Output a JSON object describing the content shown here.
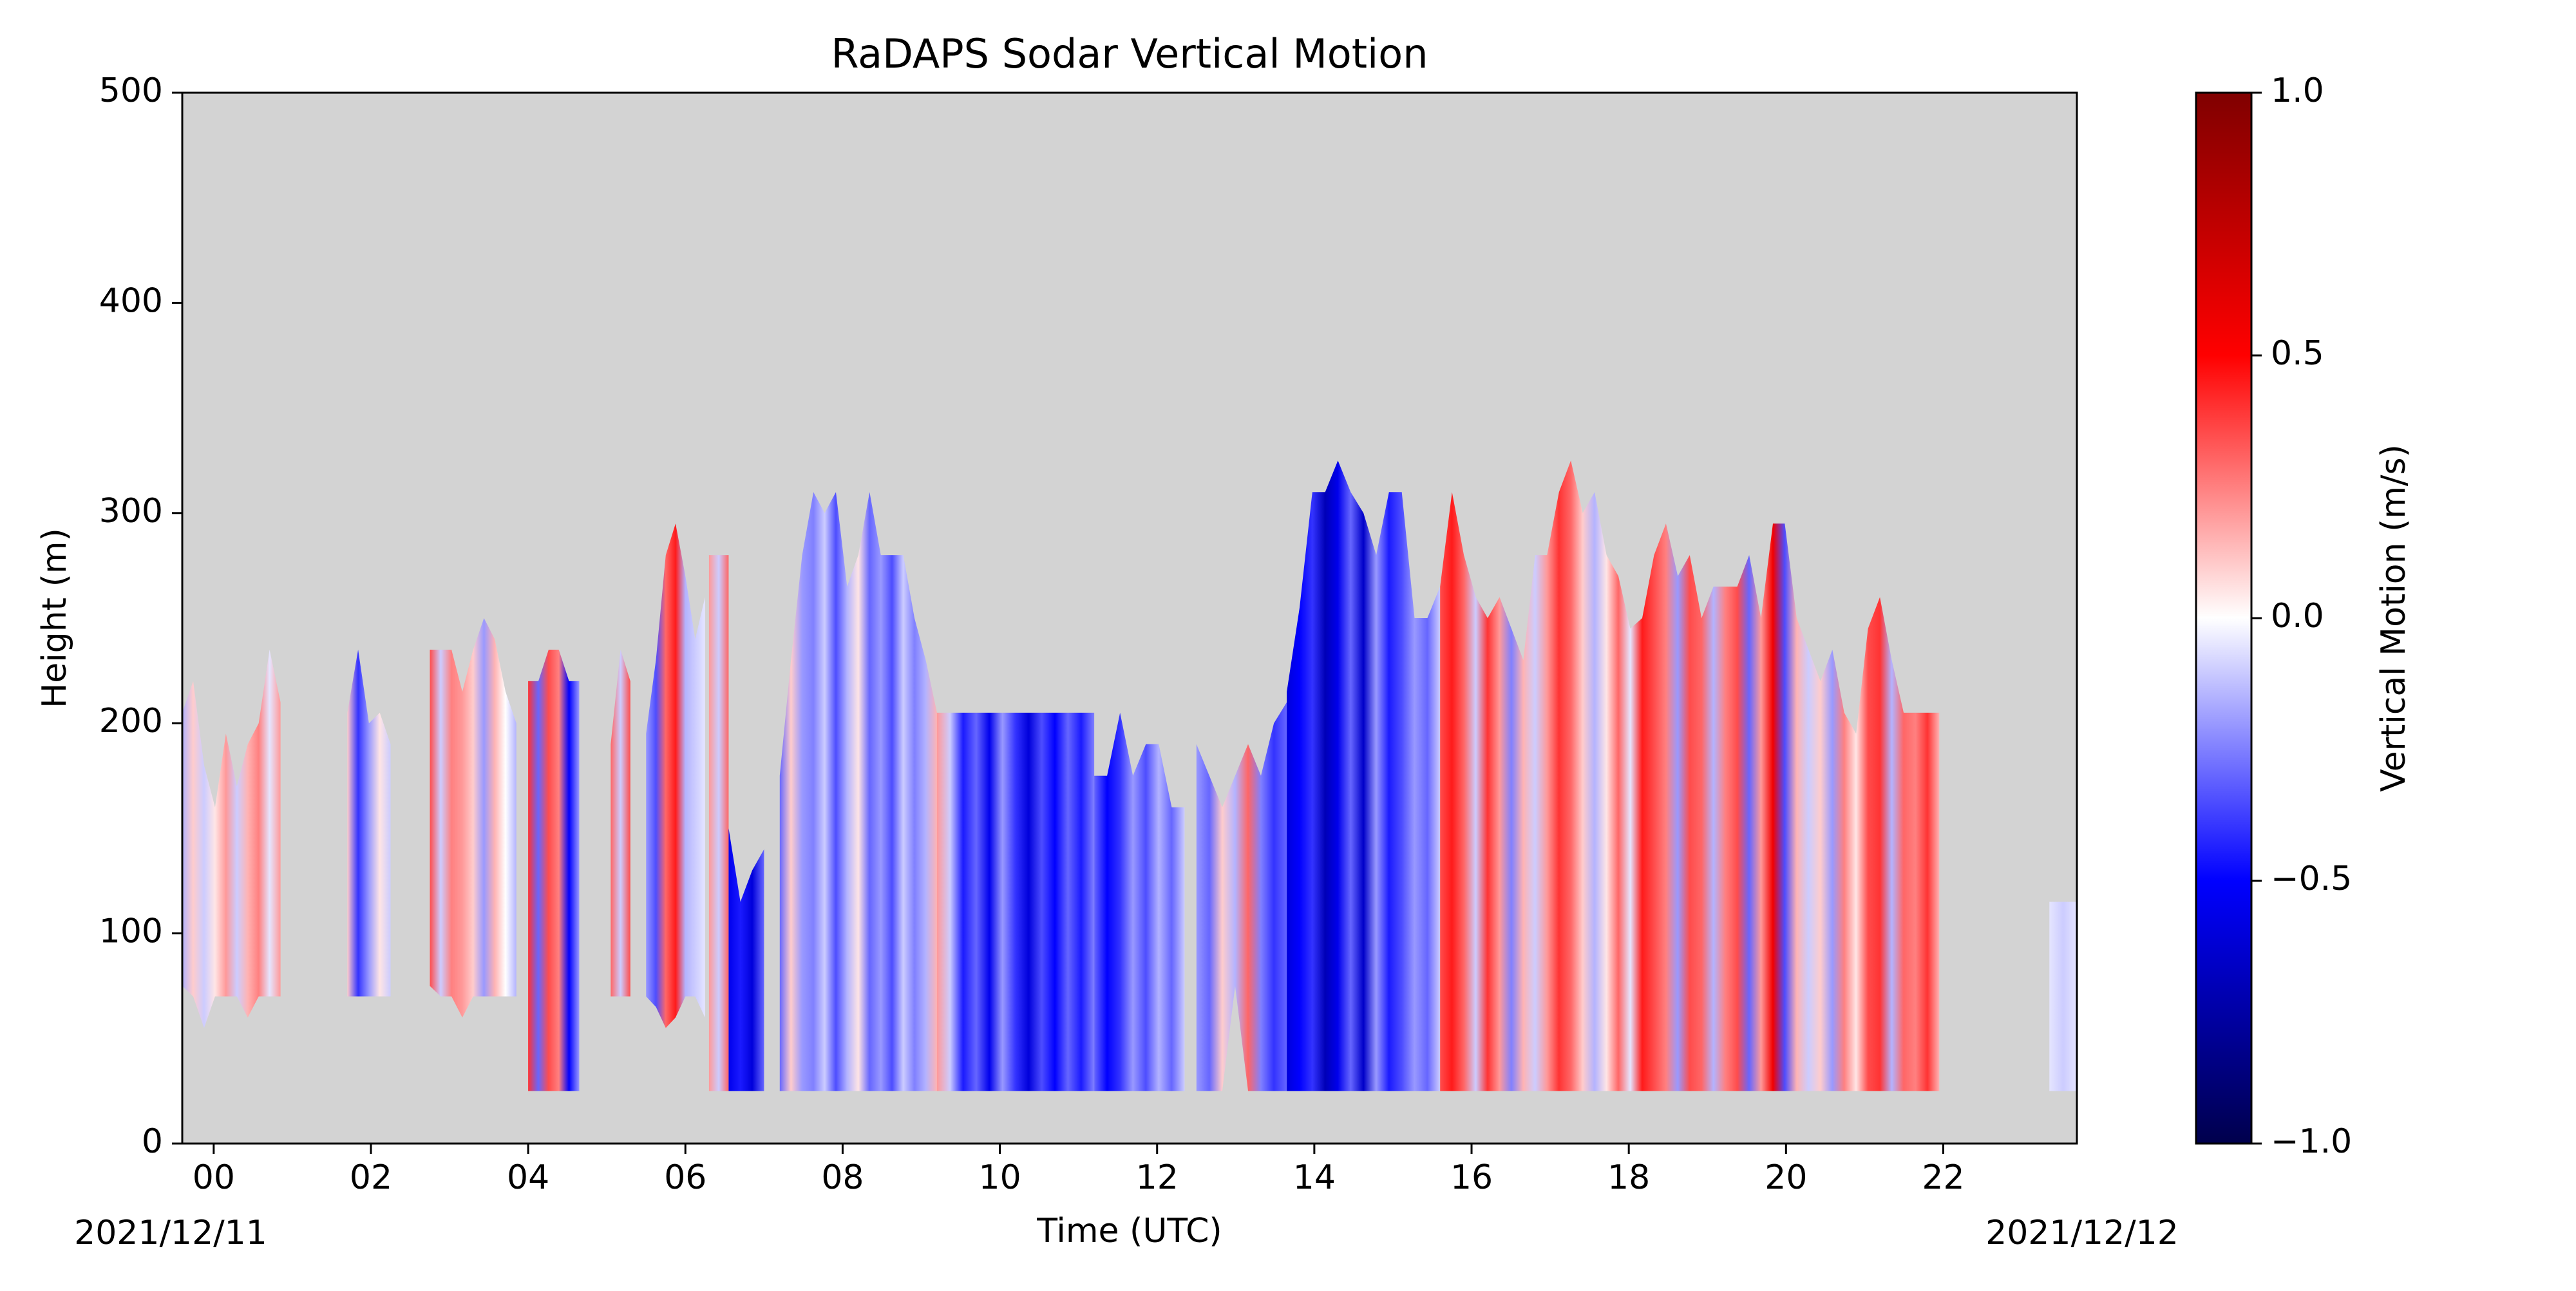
{
  "chart_data": {
    "type": "heatmap",
    "title": "RaDAPS Sodar Vertical Motion",
    "xlabel": "Time (UTC)",
    "ylabel": "Height (m)",
    "xlim": [
      -0.4,
      23.7
    ],
    "ylim": [
      0,
      500
    ],
    "x_ticks": [
      "00",
      "02",
      "04",
      "06",
      "08",
      "10",
      "12",
      "14",
      "16",
      "18",
      "20",
      "22"
    ],
    "x_tick_values": [
      0,
      2,
      4,
      6,
      8,
      10,
      12,
      14,
      16,
      18,
      20,
      22
    ],
    "y_ticks": [
      0,
      100,
      200,
      300,
      400,
      500
    ],
    "date_start": "2021/12/11",
    "date_end": "2021/12/12",
    "background_color": "#d3d3d3",
    "colormap": "seismic",
    "colorbar": {
      "label": "Vertical Motion (m/s)",
      "range": [
        -1.0,
        1.0
      ],
      "ticks": [
        "−1.0",
        "−0.5",
        "0.0",
        "0.5",
        "1.0"
      ],
      "tick_values": [
        -1.0,
        -0.5,
        0.0,
        0.5,
        1.0
      ]
    },
    "segments": [
      {
        "t_start": -0.4,
        "t_end": 0.85,
        "bottom_m": [
          75,
          70,
          55,
          70,
          70,
          70,
          60,
          70,
          70,
          70
        ],
        "top_m": [
          205,
          220,
          180,
          160,
          195,
          170,
          190,
          200,
          235,
          210
        ],
        "w_mps": [
          -0.15,
          0.1,
          -0.1,
          0.05,
          0.2,
          -0.1,
          0.15,
          0.25,
          -0.05,
          0.2
        ]
      },
      {
        "t_start": 1.7,
        "t_end": 2.25,
        "bottom_m": [
          70,
          70,
          70,
          70,
          70
        ],
        "top_m": [
          205,
          235,
          200,
          205,
          190
        ],
        "w_mps": [
          0.1,
          -0.4,
          -0.2,
          0.05,
          -0.1
        ]
      },
      {
        "t_start": 2.75,
        "t_end": 3.85,
        "bottom_m": [
          75,
          70,
          70,
          60,
          70,
          70,
          70,
          70,
          70
        ],
        "top_m": [
          235,
          235,
          235,
          215,
          235,
          250,
          240,
          215,
          200
        ],
        "w_mps": [
          0.35,
          -0.1,
          0.25,
          0.2,
          0.1,
          -0.2,
          0.15,
          0.0,
          -0.15
        ]
      },
      {
        "t_start": 4.0,
        "t_end": 4.65,
        "bottom_m": [
          25,
          25,
          25,
          25,
          25,
          25
        ],
        "top_m": [
          220,
          220,
          235,
          235,
          220,
          220
        ],
        "w_mps": [
          0.4,
          -0.3,
          0.35,
          0.25,
          -0.5,
          -0.2
        ]
      },
      {
        "t_start": 5.05,
        "t_end": 5.3,
        "bottom_m": [
          70,
          70,
          70
        ],
        "top_m": [
          190,
          235,
          220
        ],
        "w_mps": [
          0.3,
          -0.1,
          0.35
        ]
      },
      {
        "t_start": 5.5,
        "t_end": 6.25,
        "bottom_m": [
          70,
          65,
          55,
          60,
          70,
          70,
          60
        ],
        "top_m": [
          195,
          230,
          280,
          295,
          270,
          240,
          260
        ],
        "w_mps": [
          -0.2,
          -0.35,
          0.3,
          0.45,
          -0.15,
          -0.1,
          -0.05
        ]
      },
      {
        "t_start": 6.3,
        "t_end": 6.55,
        "bottom_m": [
          25,
          25,
          25
        ],
        "top_m": [
          280,
          280,
          280
        ],
        "w_mps": [
          0.2,
          -0.1,
          0.3
        ]
      },
      {
        "t_start": 6.55,
        "t_end": 7.0,
        "bottom_m": [
          25,
          25,
          25,
          25
        ],
        "top_m": [
          150,
          115,
          130,
          140
        ],
        "w_mps": [
          -0.55,
          -0.45,
          -0.6,
          -0.3
        ]
      },
      {
        "t_start": 7.2,
        "t_end": 9.2,
        "bottom_m": [
          25,
          25,
          25,
          25,
          25,
          25,
          25,
          25,
          25,
          25,
          25,
          25,
          25,
          25,
          25
        ],
        "top_m": [
          175,
          230,
          280,
          310,
          300,
          310,
          265,
          280,
          310,
          280,
          280,
          280,
          250,
          230,
          205
        ],
        "w_mps": [
          -0.3,
          0.1,
          -0.2,
          -0.25,
          -0.1,
          -0.35,
          -0.15,
          0.05,
          -0.3,
          -0.2,
          -0.35,
          -0.1,
          -0.25,
          -0.15,
          0.15
        ]
      },
      {
        "t_start": 9.2,
        "t_end": 11.2,
        "bottom_m": [
          25,
          25,
          25,
          25,
          25,
          25,
          25,
          25,
          25,
          25,
          25,
          25,
          25
        ],
        "top_m": [
          205,
          205,
          205,
          205,
          205,
          205,
          205,
          205,
          205,
          205,
          205,
          205,
          205
        ],
        "w_mps": [
          0.2,
          -0.1,
          -0.45,
          -0.3,
          -0.55,
          -0.2,
          -0.4,
          -0.6,
          -0.35,
          -0.5,
          -0.3,
          -0.45,
          -0.25
        ]
      },
      {
        "t_start": 11.2,
        "t_end": 12.35,
        "bottom_m": [
          25,
          25,
          25,
          25,
          25,
          25,
          25,
          25
        ],
        "top_m": [
          175,
          175,
          205,
          175,
          190,
          190,
          160,
          160
        ],
        "w_mps": [
          -0.3,
          -0.5,
          -0.4,
          -0.2,
          -0.35,
          -0.15,
          -0.3,
          -0.1
        ]
      },
      {
        "t_start": 12.5,
        "t_end": 13.65,
        "bottom_m": [
          25,
          25,
          25,
          75,
          25,
          25,
          25,
          25
        ],
        "top_m": [
          190,
          175,
          160,
          175,
          190,
          175,
          200,
          210
        ],
        "w_mps": [
          -0.2,
          -0.3,
          0.1,
          -0.15,
          0.3,
          -0.25,
          -0.4,
          -0.3
        ]
      },
      {
        "t_start": 13.65,
        "t_end": 15.6,
        "bottom_m": [
          25,
          25,
          25,
          25,
          25,
          25,
          25,
          25,
          25,
          25,
          25,
          25,
          25
        ],
        "top_m": [
          215,
          255,
          310,
          310,
          325,
          310,
          300,
          280,
          310,
          310,
          250,
          250,
          265
        ],
        "w_mps": [
          -0.6,
          -0.5,
          -0.4,
          -0.7,
          -0.55,
          -0.3,
          -0.65,
          -0.2,
          -0.45,
          -0.35,
          -0.2,
          -0.3,
          -0.1
        ]
      },
      {
        "t_start": 15.6,
        "t_end": 21.95,
        "bottom_m": [
          25,
          25,
          25,
          25,
          25,
          25,
          25,
          25,
          25,
          25,
          25,
          25,
          25,
          25,
          25,
          25,
          25,
          25,
          25,
          25,
          25,
          25,
          25,
          25,
          25,
          25,
          25,
          25,
          25,
          25,
          25,
          25,
          25,
          25,
          25,
          25,
          25,
          25,
          25,
          25,
          25,
          25,
          25
        ],
        "top_m": [
          265,
          310,
          280,
          260,
          250,
          260,
          245,
          230,
          280,
          280,
          310,
          325,
          300,
          310,
          280,
          270,
          245,
          250,
          280,
          295,
          270,
          280,
          250,
          265,
          265,
          265,
          280,
          250,
          295,
          295,
          250,
          235,
          220,
          235,
          205,
          195,
          245,
          260,
          230,
          205,
          205,
          205,
          205
        ],
        "w_mps": [
          0.35,
          0.45,
          0.3,
          -0.1,
          0.4,
          0.2,
          -0.25,
          0.15,
          -0.1,
          0.2,
          0.4,
          0.3,
          0.1,
          -0.15,
          0.05,
          0.3,
          -0.05,
          0.45,
          0.35,
          0.25,
          -0.2,
          0.35,
          0.3,
          -0.15,
          0.25,
          0.35,
          -0.3,
          0.2,
          0.55,
          -0.35,
          0.15,
          -0.1,
          0.1,
          -0.2,
          0.25,
          0.05,
          0.35,
          0.4,
          -0.15,
          0.3,
          0.25,
          0.4,
          0.15
        ]
      },
      {
        "t_start": 23.35,
        "t_end": 23.7,
        "bottom_m": [
          25,
          25,
          25
        ],
        "top_m": [
          115,
          115,
          115
        ],
        "w_mps": [
          -0.05,
          -0.1,
          -0.05
        ]
      }
    ]
  }
}
